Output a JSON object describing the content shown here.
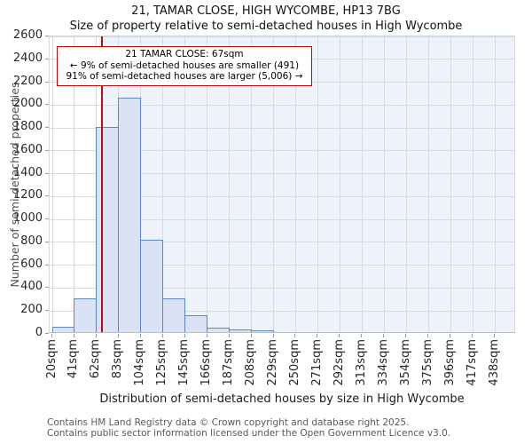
{
  "title": "21, TAMAR CLOSE, HIGH WYCOMBE, HP13 7BG",
  "subtitle": "Size of property relative to semi-detached houses in High Wycombe",
  "annotation": {
    "lines": [
      "21 TAMAR CLOSE: 67sqm",
      "← 9% of semi-detached houses are smaller (491)",
      "91% of semi-detached houses are larger (5,006) →"
    ]
  },
  "chart_data": {
    "type": "bar",
    "title": "21, TAMAR CLOSE, HIGH WYCOMBE, HP13 7BG",
    "subtitle": "Size of property relative to semi-detached houses in High Wycombe",
    "xlabel": "Distribution of semi-detached houses by size in High Wycombe",
    "ylabel": "Number of semi-detached properties",
    "categories": [
      "20sqm",
      "41sqm",
      "62sqm",
      "83sqm",
      "104sqm",
      "125sqm",
      "145sqm",
      "166sqm",
      "187sqm",
      "208sqm",
      "229sqm",
      "250sqm",
      "271sqm",
      "292sqm",
      "313sqm",
      "334sqm",
      "354sqm",
      "375sqm",
      "396sqm",
      "417sqm",
      "438sqm"
    ],
    "values": [
      50,
      295,
      1790,
      2050,
      810,
      295,
      150,
      40,
      25,
      15,
      0,
      0,
      0,
      0,
      0,
      0,
      0,
      0,
      0,
      0
    ],
    "ylim": [
      0,
      2600
    ],
    "ytick_step": 200,
    "grid": true,
    "legend": false,
    "marker_value": 67,
    "marker_label": "21 TAMAR CLOSE: 67sqm",
    "colors": {
      "bar_fill": "#d9e3f5",
      "bar_border": "#5b87c5",
      "marker_red": "#b01212",
      "annotation_border": "#b01212",
      "shade_right_of_marker": "#eef3fb",
      "grid": "#d7dade"
    }
  },
  "footer": {
    "lines": [
      "Contains HM Land Registry data © Crown copyright and database right 2025.",
      "Contains public sector information licensed under the Open Government Licence v3.0."
    ]
  }
}
